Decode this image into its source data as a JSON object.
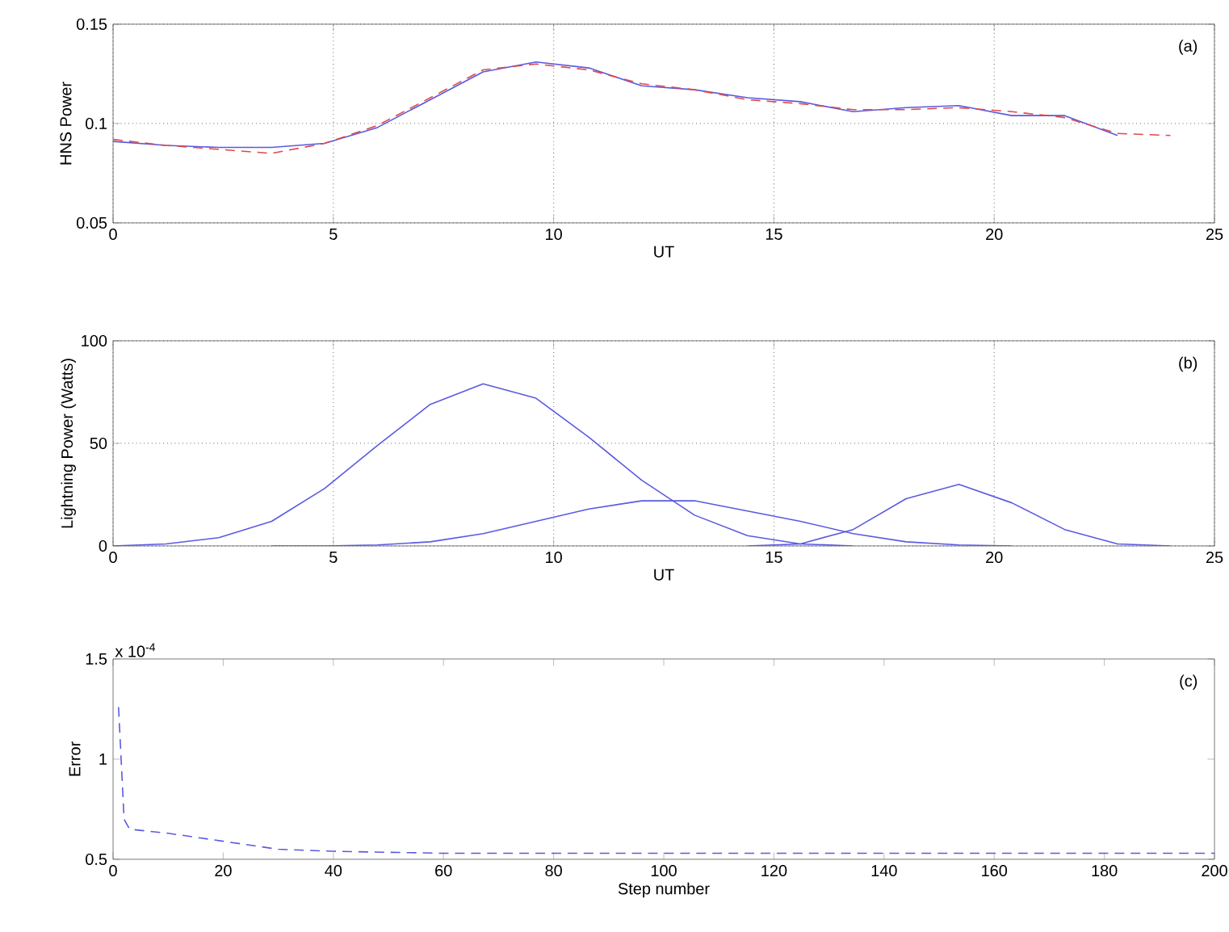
{
  "chart_data": [
    {
      "type": "line",
      "ylabel": "HNS Power",
      "xlabel": "UT",
      "annotations": [
        "(a)"
      ],
      "xlim": [
        0,
        25
      ],
      "ylim": [
        0.05,
        0.15
      ],
      "xticks": [
        0,
        5,
        10,
        15,
        20,
        25
      ],
      "yticks": [
        0.05,
        0.1,
        0.15
      ],
      "grid": true,
      "marker": "none",
      "series": [
        {
          "color": "#5a5ae0",
          "line_style": "solid",
          "x": [
            0,
            1.2,
            2.4,
            3.6,
            4.8,
            6,
            7.2,
            8.4,
            9.6,
            10.8,
            12,
            13.2,
            14.4,
            15.6,
            16.8,
            18,
            19.2,
            20.4,
            21.6,
            22.8
          ],
          "values": [
            0.091,
            0.089,
            0.088,
            0.088,
            0.09,
            0.098,
            0.112,
            0.126,
            0.131,
            0.128,
            0.119,
            0.117,
            0.113,
            0.111,
            0.106,
            0.108,
            0.109,
            0.104,
            0.104,
            0.094
          ]
        },
        {
          "color": "#e04848",
          "line_style": "dashed",
          "x": [
            0,
            1.2,
            2.4,
            3.6,
            4.8,
            6,
            7.2,
            8.4,
            9.6,
            10.8,
            12,
            13.2,
            14.4,
            15.6,
            16.8,
            18,
            19.2,
            20.4,
            21.6,
            22.8,
            24
          ],
          "values": [
            0.092,
            0.089,
            0.087,
            0.085,
            0.09,
            0.099,
            0.113,
            0.127,
            0.13,
            0.127,
            0.12,
            0.117,
            0.112,
            0.11,
            0.107,
            0.107,
            0.108,
            0.106,
            0.103,
            0.095,
            0.094
          ]
        }
      ]
    },
    {
      "type": "line",
      "ylabel": "Lightning Power (Watts)",
      "xlabel": "UT",
      "annotations": [
        "(b)"
      ],
      "xlim": [
        0,
        25
      ],
      "ylim": [
        0,
        100
      ],
      "xticks": [
        0,
        5,
        10,
        15,
        20,
        25
      ],
      "yticks": [
        0,
        50,
        100
      ],
      "grid": true,
      "marker": "none",
      "series": [
        {
          "color": "#5a5ae0",
          "line_style": "solid",
          "x": [
            0,
            1.2,
            2.4,
            3.6,
            4.8,
            6,
            7.2,
            8.4,
            9.6,
            10.8,
            12,
            13.2,
            14.4,
            15.6,
            16.8
          ],
          "values": [
            0,
            1,
            4,
            12,
            28,
            49,
            69,
            79,
            72,
            53,
            32,
            15,
            5,
            1,
            0
          ]
        },
        {
          "color": "#5a5ae0",
          "line_style": "solid",
          "x": [
            3.6,
            4.8,
            6,
            7.2,
            8.4,
            9.6,
            10.8,
            12,
            13.2,
            14.4,
            15.6,
            16.8,
            18,
            19.2,
            20.4
          ],
          "values": [
            0,
            0,
            0.5,
            2,
            6,
            12,
            18,
            22,
            22,
            17,
            12,
            6,
            2,
            0.5,
            0
          ]
        },
        {
          "color": "#5a5ae0",
          "line_style": "solid",
          "x": [
            14.4,
            15.6,
            16.8,
            18,
            19.2,
            20.4,
            21.6,
            22.8,
            24
          ],
          "values": [
            0,
            1,
            8,
            23,
            30,
            21,
            8,
            1,
            0
          ]
        }
      ]
    },
    {
      "type": "line",
      "ylabel": "Error",
      "xlabel": "Step number",
      "annotations": [
        "(c)",
        "x 10$^{-4}$"
      ],
      "xlim": [
        0,
        200
      ],
      "ylim": [
        0.5,
        1.5
      ],
      "xticks": [
        0,
        20,
        40,
        60,
        80,
        100,
        120,
        140,
        160,
        180,
        200
      ],
      "yticks": [
        0.5,
        1,
        1.5
      ],
      "marker": "none",
      "series": [
        {
          "color": "#5a5ae0",
          "line_style": "dashed",
          "x": [
            1,
            2,
            3,
            10,
            20,
            30,
            40,
            60,
            100,
            200
          ],
          "values": [
            1.26,
            0.7,
            0.65,
            0.63,
            0.59,
            0.55,
            0.54,
            0.53,
            0.53,
            0.53
          ]
        }
      ]
    }
  ]
}
